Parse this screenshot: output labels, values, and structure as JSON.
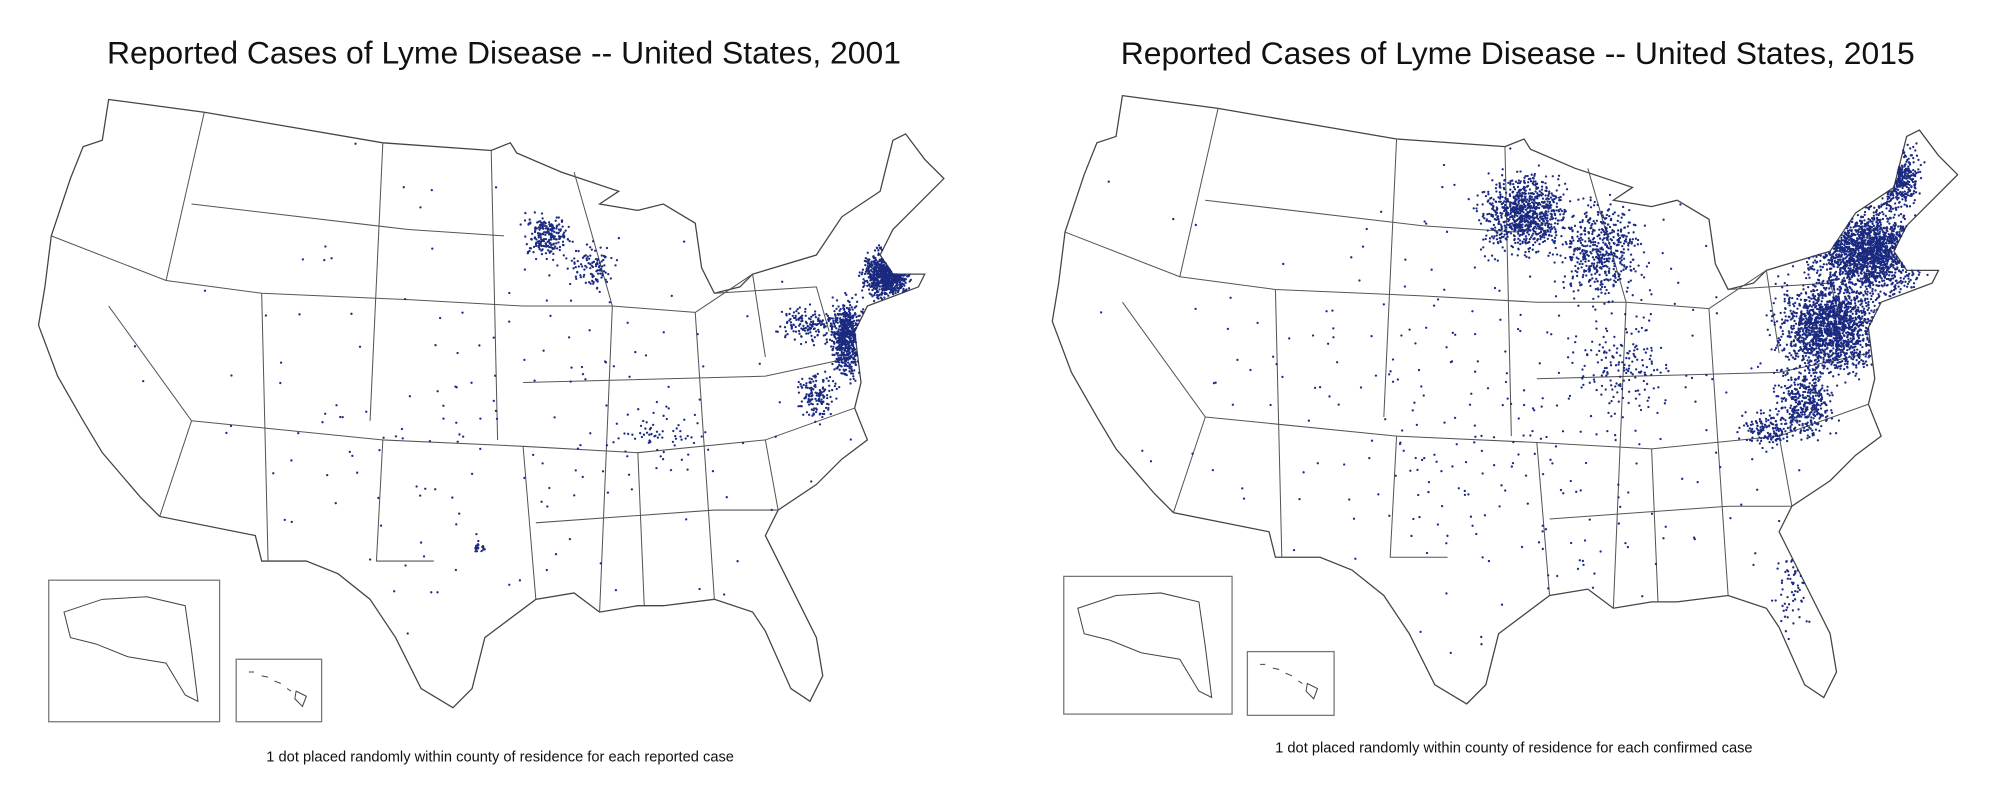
{
  "maps": [
    {
      "title": "Reported Cases of Lyme Disease -- United States, 2001",
      "note": "1 dot placed randomly within county of residence for each reported case"
    },
    {
      "title": "Reported Cases of Lyme Disease -- United States, 2015",
      "note": "1 dot placed randomly within county of residence for each confirmed case"
    }
  ]
}
